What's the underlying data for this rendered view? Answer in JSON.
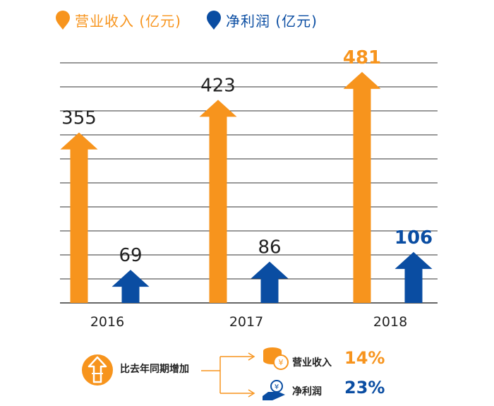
{
  "legend": {
    "revenue": "营业收入 (亿元)",
    "profit": "净利润 (亿元)"
  },
  "colors": {
    "revenue": "#f7941d",
    "profit": "#0a4da2",
    "grid": "#333333",
    "text": "#222222"
  },
  "chart_data": {
    "type": "bar",
    "categories": [
      "2016",
      "2017",
      "2018"
    ],
    "series": [
      {
        "name": "营业收入 (亿元)",
        "values": [
          355,
          423,
          481
        ],
        "labels": [
          "355",
          "423",
          "481"
        ]
      },
      {
        "name": "净利润 (亿元)",
        "values": [
          69,
          86,
          106
        ],
        "labels": [
          "69",
          "86",
          "106"
        ]
      }
    ],
    "ylim": [
      0,
      500
    ],
    "grid": true,
    "legend_position": "top-left"
  },
  "summary": {
    "headline": "比去年同期增加",
    "icon": "upward-arrow-badge-icon",
    "rows": [
      {
        "icon": "coins-icon",
        "label": "营业收入",
        "value": "14%"
      },
      {
        "icon": "hand-money-icon",
        "label": "净利润",
        "value": "23%"
      }
    ]
  }
}
